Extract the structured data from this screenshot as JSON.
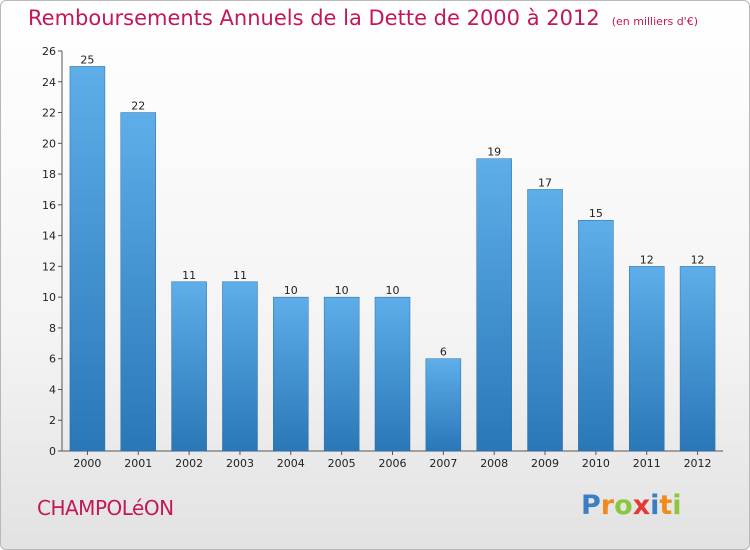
{
  "chart_data": {
    "type": "bar",
    "title": "Remboursements Annuels de la Dette de 2000 à 2012",
    "unit_note": "(en milliers d'€)",
    "categories": [
      "2000",
      "2001",
      "2002",
      "2003",
      "2004",
      "2005",
      "2006",
      "2007",
      "2008",
      "2009",
      "2010",
      "2011",
      "2012"
    ],
    "values": [
      25,
      22,
      11,
      11,
      10,
      10,
      10,
      6,
      19,
      17,
      15,
      12,
      12
    ],
    "ylim": [
      0,
      26
    ],
    "yticks": [
      0,
      2,
      4,
      6,
      8,
      10,
      12,
      14,
      16,
      18,
      20,
      22,
      24,
      26
    ],
    "grid": false,
    "bar_color_top": "#5daee9",
    "bar_color_bottom": "#2a77b8"
  },
  "footer": {
    "commune": "CHAMPOLéON",
    "logo_letters": [
      "P",
      "r",
      "o",
      "x",
      "i",
      "t",
      "i"
    ],
    "logo_colors": [
      "#3a7fc2",
      "#f08a1c",
      "#8cc63f",
      "#e53935",
      "#3a7fc2",
      "#f08a1c",
      "#8cc63f"
    ]
  }
}
